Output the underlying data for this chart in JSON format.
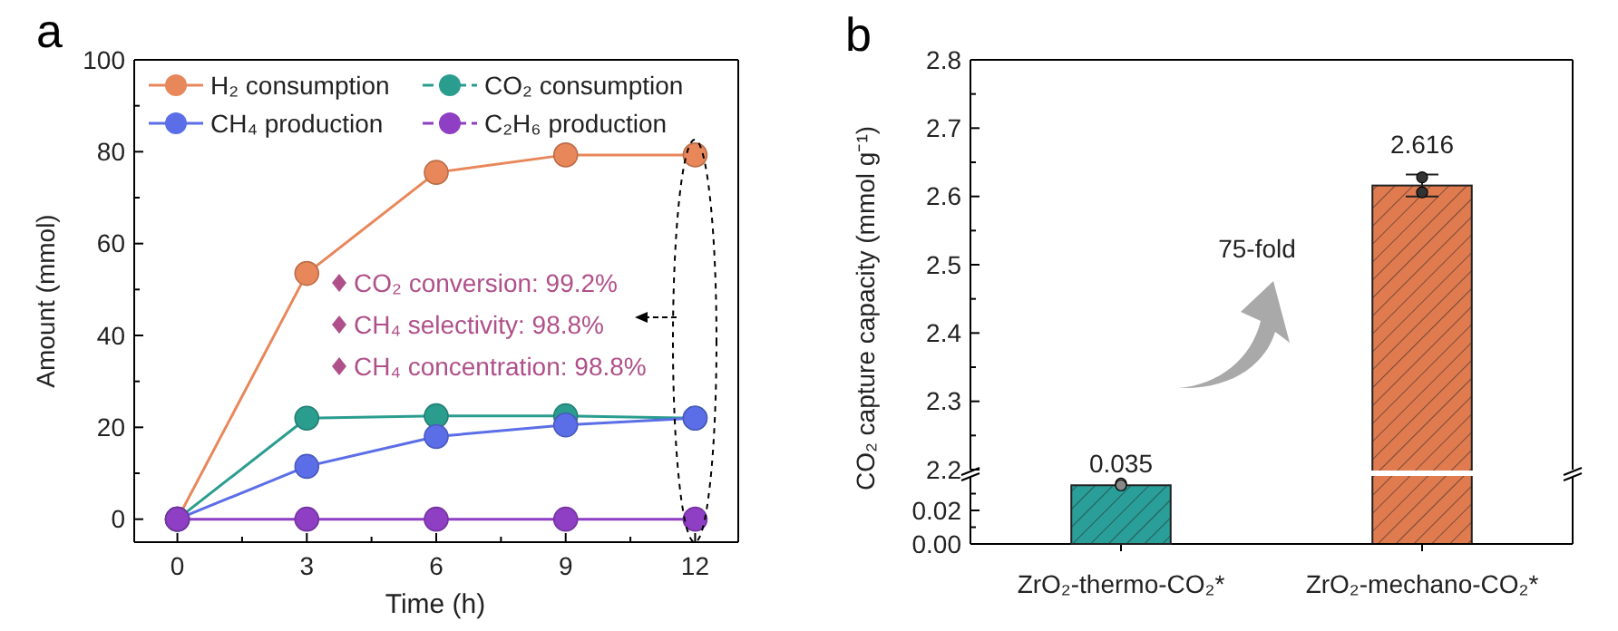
{
  "chart_data": [
    {
      "type": "line",
      "title": "a",
      "xlabel": "Time (h)",
      "ylabel": "Amount (mmol)",
      "x": [
        0,
        3,
        6,
        9,
        12
      ],
      "xlim": [
        -1,
        13
      ],
      "xticks": [
        0,
        {
          "value": 1.5,
          "label": null
        },
        3,
        {
          "value": 4.5,
          "label": null
        },
        6,
        {
          "value": 7.5,
          "label": null
        },
        9,
        {
          "value": 10.5,
          "label": null
        },
        12
      ],
      "ylim": [
        -5,
        100
      ],
      "yticks": [
        0,
        {
          "value": 10,
          "label": null
        },
        20,
        {
          "value": 30,
          "label": null
        },
        40,
        {
          "value": 50,
          "label": null
        },
        60,
        {
          "value": 70,
          "label": null
        },
        80,
        {
          "value": 90,
          "label": null
        },
        100
      ],
      "marker": "circle",
      "legend": "top",
      "series": [
        {
          "name": "H₂ consumption",
          "color": "#e8875a",
          "values": [
            0,
            53.5,
            75.5,
            79.3,
            79.3
          ]
        },
        {
          "name": "CO₂ consumption",
          "color": "#2a9d8f",
          "values": [
            0,
            22,
            22.5,
            22.5,
            22
          ]
        },
        {
          "name": "CH₄ production",
          "color": "#5b6ee8",
          "values": [
            0,
            11.5,
            18,
            20.5,
            22
          ]
        },
        {
          "name": "C₂H₆ production",
          "color": "#8e3fc4",
          "values": [
            0,
            0,
            0,
            0,
            0
          ]
        }
      ],
      "annotations": [
        "CO₂ conversion: 99.2%",
        "CH₄ selectivity: 98.8%",
        "CH₄ concentration: 98.8%"
      ]
    },
    {
      "type": "bar",
      "title": "b",
      "ylabel": "CO₂ capture capacity (mmol g⁻¹)",
      "categories": [
        "ZrO₂-thermo-CO₂*",
        "ZrO₂-mechano-CO₂*"
      ],
      "ylim": [
        2.2,
        2.8
      ],
      "yticks": [
        2.2,
        {
          "value": 2.25,
          "label": null
        },
        2.3,
        {
          "value": 2.35,
          "label": null
        },
        2.4,
        {
          "value": 2.45,
          "label": null
        },
        2.5,
        {
          "value": 2.55,
          "label": null
        },
        2.6,
        {
          "value": 2.65,
          "label": null
        },
        2.7,
        {
          "value": 2.75,
          "label": null
        },
        2.8
      ],
      "tick_labels": "y",
      "series": [
        {
          "values": [
            null,
            2.616
          ],
          "color": "#e07b4f",
          "errors": [
            null,
            0.016
          ],
          "value_labels": [
            null,
            "2.616"
          ]
        },
        {
          "type": "scatter",
          "color": "#333333",
          "x": [
            "ZrO₂-mechano-CO₂*",
            "ZrO₂-mechano-CO₂*"
          ],
          "values": [
            2.606,
            2.628
          ]
        }
      ],
      "annotations": [
        "75-fold"
      ]
    },
    {
      "type": "bar",
      "categories": [
        "ZrO₂-thermo-CO₂*",
        "ZrO₂-mechano-CO₂*"
      ],
      "ylim": [
        0,
        0.04
      ],
      "yticks": [
        {
          "value": 0,
          "label": "0.00"
        },
        {
          "value": 0.01,
          "label": null
        },
        {
          "value": 0.02,
          "label": "0.02"
        },
        {
          "value": 0.03,
          "label": null
        }
      ],
      "series": [
        {
          "values": [
            0.035,
            null
          ],
          "color": "#2a9e98",
          "value_labels": [
            "0.035",
            null
          ]
        },
        {
          "type": "scatter",
          "color": "#888888",
          "x": [
            "ZrO₂-thermo-CO₂*",
            "ZrO₂-thermo-CO₂*"
          ],
          "values": [
            0.036,
            0.035
          ]
        }
      ]
    }
  ]
}
